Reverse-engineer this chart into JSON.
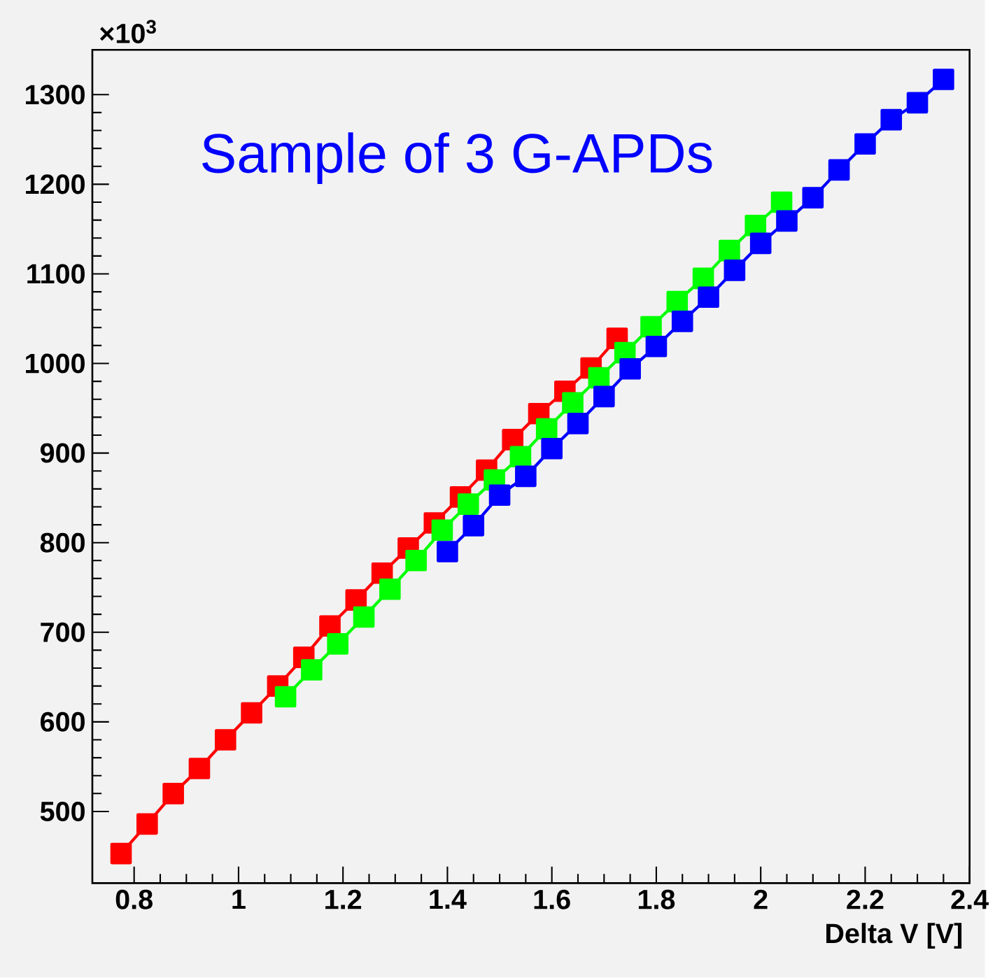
{
  "chart_data": {
    "type": "line",
    "xlabel": "Delta V [V]",
    "ylabel": "×10$^{3}$",
    "annotations": [
      "Sample of 3 G-APDs"
    ],
    "xlim": [
      0.72,
      2.4
    ],
    "ylim": [
      420,
      1350
    ],
    "xticks": [
      0.8,
      1,
      1.2,
      1.4,
      1.6,
      1.8,
      2,
      2.2,
      2.4
    ],
    "yticks": [
      500,
      600,
      700,
      800,
      900,
      1000,
      1100,
      1200,
      1300
    ],
    "marker": "square",
    "line_style": "solid",
    "series": [
      {
        "color": "#ff0000",
        "x": [
          0.775,
          0.825,
          0.875,
          0.925,
          0.975,
          1.025,
          1.075,
          1.125,
          1.175,
          1.225,
          1.275,
          1.325,
          1.375,
          1.425,
          1.475,
          1.525,
          1.575,
          1.625,
          1.675,
          1.725
        ],
        "values": [
          453,
          486,
          520,
          548,
          580,
          610,
          640,
          672,
          707,
          736,
          766,
          794,
          822,
          851,
          881,
          915,
          944,
          969,
          995,
          1028
        ]
      },
      {
        "color": "#00ff00",
        "x": [
          1.09,
          1.14,
          1.19,
          1.24,
          1.29,
          1.34,
          1.39,
          1.44,
          1.49,
          1.54,
          1.59,
          1.64,
          1.69,
          1.74,
          1.79,
          1.84,
          1.89,
          1.94,
          1.99,
          2.04
        ],
        "values": [
          628,
          658,
          687,
          717,
          748,
          780,
          814,
          843,
          870,
          896,
          927,
          956,
          984,
          1012,
          1041,
          1069,
          1095,
          1126,
          1154,
          1180
        ]
      },
      {
        "color": "#0000ff",
        "x": [
          1.4,
          1.45,
          1.5,
          1.55,
          1.6,
          1.65,
          1.7,
          1.75,
          1.8,
          1.85,
          1.9,
          1.95,
          2.0,
          2.05,
          2.1,
          2.15,
          2.2,
          2.25,
          2.3,
          2.35
        ],
        "values": [
          790,
          819,
          853,
          874,
          905,
          933,
          963,
          994,
          1019,
          1047,
          1074,
          1104,
          1134,
          1159,
          1185,
          1216,
          1245,
          1272,
          1291,
          1317
        ]
      }
    ]
  }
}
